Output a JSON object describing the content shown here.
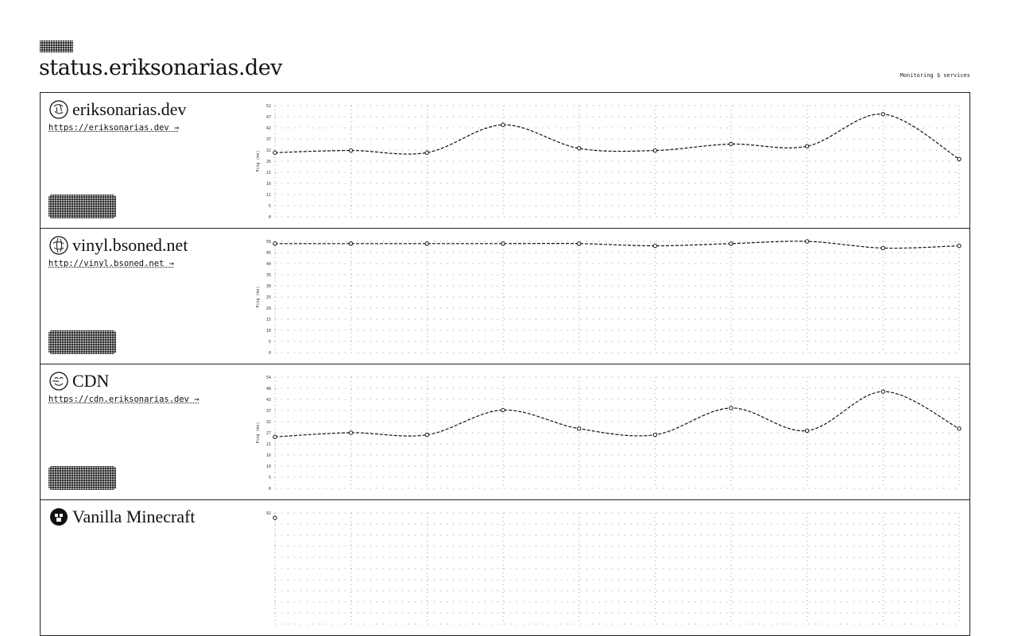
{
  "header": {
    "site_title": "status.eriksonarias.dev",
    "monitoring_text": "Monitoring $ services",
    "logo_icon": "dither-logo-icon"
  },
  "colors": {
    "ink": "#111111",
    "background": "#ffffff"
  },
  "services": [
    {
      "name": "eriksonarias.dev",
      "url": "https://eriksonarias.dev →",
      "icon": "globe-face-icon"
    },
    {
      "name": "vinyl.bsoned.net",
      "url": "http://vinyl.bsoned.net →",
      "icon": "globe-face-icon"
    },
    {
      "name": "CDN",
      "url": "https://cdn.eriksonarias.dev →",
      "icon": "globe-face-icon"
    },
    {
      "name": "Vanilla Minecraft",
      "url": "",
      "icon": "minecraft-icon"
    }
  ],
  "chart_data": [
    {
      "type": "line",
      "ylabel": "Ping (ms)",
      "ylim": [
        0,
        52
      ],
      "yticks": [
        "52",
        "47",
        "42",
        "37",
        "32",
        "26",
        "21",
        "16",
        "11",
        "5",
        "0"
      ],
      "values": [
        30,
        31,
        30,
        43,
        32,
        31,
        34,
        33,
        48,
        27
      ]
    },
    {
      "type": "line",
      "ylabel": "Ping (ms)",
      "ylim": [
        0,
        50
      ],
      "yticks": [
        "50",
        "45",
        "40",
        "35",
        "30",
        "25",
        "20",
        "15",
        "10",
        "5",
        "0"
      ],
      "values": [
        49,
        49,
        49,
        49,
        49,
        48,
        49,
        50,
        47,
        48
      ]
    },
    {
      "type": "line",
      "ylabel": "Ping (ms)",
      "ylim": [
        0,
        54
      ],
      "yticks": [
        "54",
        "48",
        "43",
        "37",
        "32",
        "27",
        "21",
        "16",
        "10",
        "5",
        "0"
      ],
      "values": [
        25,
        27,
        26,
        38,
        29,
        26,
        39,
        28,
        47,
        29
      ]
    },
    {
      "type": "line",
      "ylabel": "",
      "ylim": [
        0,
        92
      ],
      "yticks": [
        "92"
      ],
      "values": [
        88
      ]
    }
  ]
}
